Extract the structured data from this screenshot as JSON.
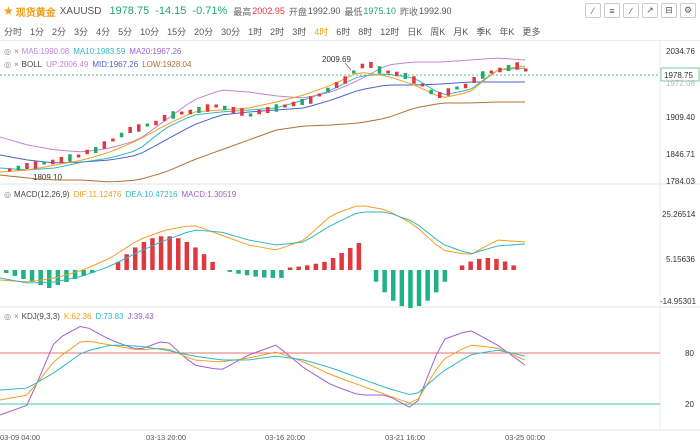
{
  "header": {
    "title_name": "现货黄金",
    "title_code": "XAUUSD",
    "price": "1978.75",
    "change": "-14.15",
    "change_pct": "-0.71%",
    "high_label": "最高",
    "high_value": "2002.95",
    "open_label": "开盘",
    "open_value": "1992.90",
    "low_label": "最低",
    "low_value": "1975.10",
    "prev_label": "昨收",
    "prev_value": "1992.90"
  },
  "periods": [
    "分时",
    "1分",
    "2分",
    "3分",
    "4分",
    "5分",
    "10分",
    "15分",
    "20分",
    "30分",
    "1时",
    "2时",
    "3时",
    "4时",
    "6时",
    "8时",
    "12时",
    "日K",
    "周K",
    "月K",
    "季K",
    "年K",
    "更多"
  ],
  "active_period": "4时",
  "indicators": {
    "ma": {
      "name": "MA5:1990.08",
      "ma10": "MA10:1983.59",
      "ma20": "MA20:1967.26"
    },
    "boll": {
      "name": "BOLL",
      "up": "UP:2006.49",
      "mid": "MID:1967.26",
      "low": "LOW:1928.04"
    },
    "macd": {
      "name": "MACD(12,26,9)",
      "dif": "DIF:11.12476",
      "dea": "DEA:10.47216",
      "macd": "MACD:1.30519"
    },
    "kdj": {
      "name": "KDJ(9,3,3)",
      "k": "K:62.36",
      "d": "D:73.83",
      "j": "J:39.43"
    }
  },
  "price_axis": {
    "ticks": [
      "2034.76",
      "1972.08",
      "1909.40",
      "1846.71",
      "1784.03"
    ],
    "current_tag": "1978.75",
    "high_label": "2009.69",
    "low_label": "1809.10"
  },
  "macd_axis": {
    "ticks": [
      "25.26514",
      "5.15636",
      "-14.95301"
    ]
  },
  "kdj_axis": {
    "ticks": [
      "80",
      "20"
    ]
  },
  "time_axis": {
    "ticks": [
      "03-09 04:00",
      "03-13 20:00",
      "03-16 20:00",
      "03-21 16:00",
      "03-25 00:00"
    ]
  },
  "colors": {
    "up": "#e0383e",
    "down": "#21a86a",
    "accent": "#f0a020"
  },
  "icons": [
    "star-icon",
    "gear-icon"
  ]
}
